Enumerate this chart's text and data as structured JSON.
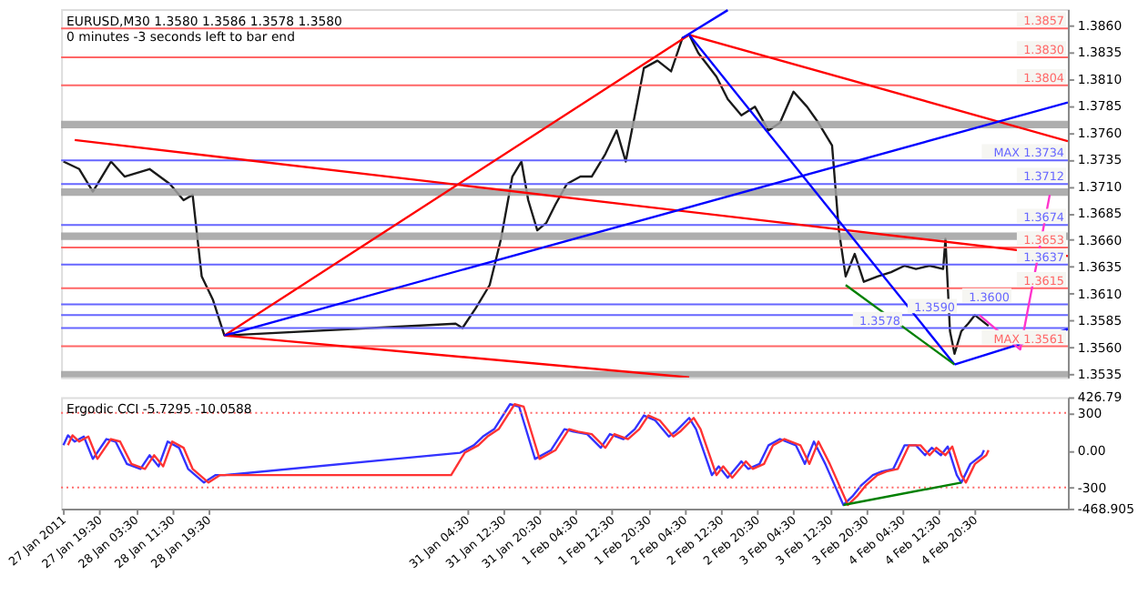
{
  "chart_data": [
    {
      "type": "line",
      "title": "EURUSD,M30  1.3580 1.3586 1.3578 1.3580",
      "subtitle": "0 minutes -3 seconds left to bar end",
      "xlim": [
        "2011-01-27T11:00",
        "2011-02-05T17:00"
      ],
      "ylim": [
        1.3532,
        1.3875
      ],
      "tick_labels": "y",
      "yticks": [
        {
          "value": 1.3535,
          "label": "1.3535"
        },
        {
          "value": 1.356,
          "label": "1.3560"
        },
        {
          "value": 1.3585,
          "label": "1.3585"
        },
        {
          "value": 1.361,
          "label": "1.3610"
        },
        {
          "value": 1.3635,
          "label": "1.3635"
        },
        {
          "value": 1.366,
          "label": "1.3660"
        },
        {
          "value": 1.3685,
          "label": "1.3685"
        },
        {
          "value": 1.371,
          "label": "1.3710"
        },
        {
          "value": 1.3735,
          "label": "1.3735"
        },
        {
          "value": 1.376,
          "label": "1.3760"
        },
        {
          "value": 1.3785,
          "label": "1.3785"
        },
        {
          "value": 1.381,
          "label": "1.3810"
        },
        {
          "value": 1.3835,
          "label": "1.3835"
        },
        {
          "value": 1.386,
          "label": "1.3860"
        }
      ],
      "series": [
        {
          "color": "#1a1a1a",
          "x": [
            "2011-01-27T11:30",
            "2011-01-27T15:00",
            "2011-01-27T18:00",
            "2011-01-27T22:00",
            "2011-01-28T01:00",
            "2011-01-28T06:30",
            "2011-01-28T11:00",
            "2011-01-28T14:00",
            "2011-01-28T16:00",
            "2011-01-28T18:00",
            "2011-01-28T20:30",
            "2011-01-28T23:00",
            "2011-01-31T02:00",
            "2011-01-31T03:30",
            "2011-01-31T06:30",
            "2011-01-31T09:30",
            "2011-01-31T12:00",
            "2011-01-31T14:30",
            "2011-01-31T16:30",
            "2011-01-31T18:00",
            "2011-01-31T20:00",
            "2011-01-31T22:00",
            "2011-02-01T00:00",
            "2011-02-01T02:30",
            "2011-02-01T05:30",
            "2011-02-01T08:00",
            "2011-02-01T11:00",
            "2011-02-01T13:30",
            "2011-02-01T15:30",
            "2011-02-01T17:30",
            "2011-02-01T19:30",
            "2011-02-01T22:30",
            "2011-02-02T01:30",
            "2011-02-02T04:00",
            "2011-02-02T05:30",
            "2011-02-02T07:30",
            "2011-02-02T11:30",
            "2011-02-02T14:00",
            "2011-02-02T17:00",
            "2011-02-02T20:00",
            "2011-02-02T23:00",
            "2011-02-03T01:30",
            "2011-02-03T04:30",
            "2011-02-03T07:30",
            "2011-02-03T10:00",
            "2011-02-03T13:00",
            "2011-02-03T14:30",
            "2011-02-03T16:00",
            "2011-02-03T18:00",
            "2011-02-03T20:00",
            "2011-02-03T23:00",
            "2011-02-04T02:00",
            "2011-02-04T05:00",
            "2011-02-04T07:30",
            "2011-02-04T10:30",
            "2011-02-04T13:30",
            "2011-02-04T14:00",
            "2011-02-04T15:00",
            "2011-02-04T16:00",
            "2011-02-04T17:30",
            "2011-02-04T19:00",
            "2011-02-04T20:30",
            "2011-02-04T23:30"
          ],
          "values": [
            1.3733,
            1.3726,
            1.3705,
            1.3733,
            1.3719,
            1.3726,
            1.3712,
            1.3697,
            1.3702,
            1.3626,
            1.3604,
            1.3571,
            1.3582,
            1.3578,
            1.3597,
            1.3618,
            1.3661,
            1.3719,
            1.3733,
            1.3697,
            1.3669,
            1.3676,
            1.3693,
            1.3712,
            1.3719,
            1.3719,
            1.374,
            1.3762,
            1.3733,
            1.3776,
            1.382,
            1.3827,
            1.3817,
            1.3848,
            1.3851,
            1.3834,
            1.3812,
            1.3791,
            1.3776,
            1.3784,
            1.3762,
            1.3769,
            1.3798,
            1.3784,
            1.3769,
            1.3748,
            1.3669,
            1.3626,
            1.3647,
            1.3621,
            1.3626,
            1.363,
            1.3636,
            1.3633,
            1.3636,
            1.3633,
            1.3661,
            1.3575,
            1.3554,
            1.3575,
            1.3582,
            1.359,
            1.358
          ]
        },
        {
          "type": "line",
          "color": "#ff0000",
          "x": [
            "2011-01-27T14:00",
            "2011-02-05T17:00"
          ],
          "values": [
            1.3753,
            1.3645
          ]
        },
        {
          "type": "line",
          "color": "#ff0000",
          "x": [
            "2011-01-28T23:00",
            "2011-02-02T05:30"
          ],
          "values": [
            1.3571,
            1.3532
          ]
        },
        {
          "type": "line",
          "color": "#ff0000",
          "x": [
            "2011-01-28T23:00",
            "2011-02-02T05:30"
          ],
          "values": [
            1.3571,
            1.3851
          ]
        },
        {
          "type": "line",
          "color": "#ff0000",
          "x": [
            "2011-02-02T05:30",
            "2011-02-05T17:00"
          ],
          "values": [
            1.3851,
            1.3752
          ]
        },
        {
          "type": "line",
          "color": "#0000ff",
          "x": [
            "2011-01-28T23:00",
            "2011-02-05T17:00"
          ],
          "values": [
            1.3571,
            1.3788
          ]
        },
        {
          "type": "line",
          "color": "#0000ff",
          "x": [
            "2011-02-02T04:00",
            "2011-02-02T14:00"
          ],
          "values": [
            1.3848,
            1.3874
          ]
        },
        {
          "type": "line",
          "color": "#0000ff",
          "x": [
            "2011-02-02T05:30",
            "2011-02-04T16:00"
          ],
          "values": [
            1.3851,
            1.3544
          ]
        },
        {
          "type": "line",
          "color": "#008000",
          "x": [
            "2011-02-03T16:00",
            "2011-02-04T16:00"
          ],
          "values": [
            1.3618,
            1.3544
          ]
        },
        {
          "type": "line",
          "color": "#0000ff",
          "x": [
            "2011-02-04T16:00",
            "2011-02-05T17:00"
          ],
          "values": [
            1.3544,
            1.3577
          ]
        },
        {
          "type": "line",
          "color": "#ff33cc",
          "x": [
            "2011-02-04T21:30",
            "2011-02-05T06:30",
            "2011-02-05T13:00"
          ],
          "values": [
            1.359,
            1.3558,
            1.3702
          ]
        }
      ],
      "bands": [
        {
          "axis": "y",
          "from": 1.3764,
          "to": 1.3771,
          "color": "#a0a0a0"
        },
        {
          "axis": "y",
          "from": 1.3701,
          "to": 1.3708,
          "color": "#a0a0a0"
        },
        {
          "axis": "y",
          "from": 1.366,
          "to": 1.3667,
          "color": "#a0a0a0"
        },
        {
          "axis": "y",
          "from": 1.3532,
          "to": 1.3538,
          "color": "#a0a0a0"
        }
      ],
      "ref_lines": [
        {
          "axis": "y",
          "value": 1.3857,
          "label": "1.3857",
          "color": "#ff6666"
        },
        {
          "axis": "y",
          "value": 1.383,
          "label": "1.3830",
          "color": "#ff6666"
        },
        {
          "axis": "y",
          "value": 1.3804,
          "label": "1.3804",
          "color": "#ff6666"
        },
        {
          "axis": "y",
          "value": 1.3653,
          "label": "1.3653",
          "color": "#ff6666"
        },
        {
          "axis": "y",
          "value": 1.3615,
          "label": "1.3615",
          "color": "#ff6666"
        },
        {
          "axis": "y",
          "value": 1.3561,
          "label": "MAX  1.3561",
          "color": "#ff6666"
        },
        {
          "axis": "y",
          "value": 1.3734,
          "label": "MAX  1.3734",
          "color": "#6666ff"
        },
        {
          "axis": "y",
          "value": 1.3712,
          "label": "1.3712",
          "color": "#6666ff"
        },
        {
          "axis": "y",
          "value": 1.3674,
          "label": "1.3674",
          "color": "#6666ff"
        },
        {
          "axis": "y",
          "value": 1.3637,
          "label": "1.3637",
          "color": "#6666ff"
        },
        {
          "axis": "y",
          "value": 1.36,
          "label": "1.3600",
          "color": "#6666ff"
        },
        {
          "axis": "y",
          "value": 1.359,
          "label": "1.3590",
          "color": "#6666ff"
        },
        {
          "axis": "y",
          "value": 1.3578,
          "label": "1.3578",
          "color": "#6666ff"
        }
      ]
    },
    {
      "type": "line",
      "title": "Ergodic CCI -5.7295 -10.0588",
      "xlim": [
        "2011-01-27T11:00",
        "2011-02-05T17:00"
      ],
      "ylim": [
        -468.905,
        426.79
      ],
      "yticks": [
        -468.905,
        -300,
        {
          "value": 0,
          "label": "0.00"
        },
        300,
        426.79
      ],
      "xticks": [
        {
          "value": "2011-01-27T11:30",
          "label": "27 Jan 2011"
        },
        {
          "value": "2011-01-27T19:30",
          "label": "27 Jan 19:30"
        },
        {
          "value": "2011-01-28T03:30",
          "label": "28 Jan 03:30"
        },
        {
          "value": "2011-01-28T11:30",
          "label": "28 Jan 11:30"
        },
        {
          "value": "2011-01-28T19:30",
          "label": "28 Jan 19:30"
        },
        {
          "value": "2011-01-31T04:30",
          "label": "31 Jan 04:30"
        },
        {
          "value": "2011-01-31T12:30",
          "label": "31 Jan 12:30"
        },
        {
          "value": "2011-01-31T20:30",
          "label": "31 Jan 20:30"
        },
        {
          "value": "2011-02-01T04:30",
          "label": "1 Feb 04:30"
        },
        {
          "value": "2011-02-01T12:30",
          "label": "1 Feb 12:30"
        },
        {
          "value": "2011-02-01T20:30",
          "label": "1 Feb 20:30"
        },
        {
          "value": "2011-02-02T04:30",
          "label": "2 Feb 04:30"
        },
        {
          "value": "2011-02-02T12:30",
          "label": "2 Feb 12:30"
        },
        {
          "value": "2011-02-02T20:30",
          "label": "2 Feb 20:30"
        },
        {
          "value": "2011-02-03T04:30",
          "label": "3 Feb 04:30"
        },
        {
          "value": "2011-02-03T12:30",
          "label": "3 Feb 12:30"
        },
        {
          "value": "2011-02-03T20:30",
          "label": "3 Feb 20:30"
        },
        {
          "value": "2011-02-04T04:30",
          "label": "4 Feb 04:30"
        },
        {
          "value": "2011-02-04T12:30",
          "label": "4 Feb 12:30"
        },
        {
          "value": "2011-02-04T20:30",
          "label": "4 Feb 20:30"
        }
      ],
      "series": [
        {
          "color": "#3333ff",
          "x": [
            "2011-01-27T11:30",
            "2011-01-27T12:30",
            "2011-01-27T14:00",
            "2011-01-27T16:00",
            "2011-01-27T18:00",
            "2011-01-27T21:00",
            "2011-01-27T23:00",
            "2011-01-28T01:30",
            "2011-01-28T04:30",
            "2011-01-28T06:30",
            "2011-01-28T08:30",
            "2011-01-28T10:30",
            "2011-01-28T13:00",
            "2011-01-28T15:00",
            "2011-01-28T18:30",
            "2011-01-28T21:00",
            "2011-01-28T23:00",
            "2011-01-31T03:00",
            "2011-01-31T06:00",
            "2011-01-31T08:00",
            "2011-01-31T10:30",
            "2011-01-31T14:00",
            "2011-01-31T16:00",
            "2011-01-31T19:30",
            "2011-01-31T23:00",
            "2011-02-01T02:00",
            "2011-02-01T04:00",
            "2011-02-01T07:00",
            "2011-02-01T10:00",
            "2011-02-01T12:00",
            "2011-02-01T15:00",
            "2011-02-01T17:30",
            "2011-02-01T19:30",
            "2011-02-01T22:00",
            "2011-02-02T01:00",
            "2011-02-02T02:30",
            "2011-02-02T05:30",
            "2011-02-02T07:00",
            "2011-02-02T10:30",
            "2011-02-02T12:00",
            "2011-02-02T14:00",
            "2011-02-02T17:00",
            "2011-02-02T18:30",
            "2011-02-02T21:00",
            "2011-02-02T23:00",
            "2011-02-03T01:30",
            "2011-02-03T05:00",
            "2011-02-03T07:00",
            "2011-02-03T09:00",
            "2011-02-03T11:30",
            "2011-02-03T15:30",
            "2011-02-03T17:30",
            "2011-02-03T19:30",
            "2011-02-03T22:00",
            "2011-02-04T00:00",
            "2011-02-04T02:30",
            "2011-02-04T05:00",
            "2011-02-04T07:30",
            "2011-02-04T09:30",
            "2011-02-04T11:00",
            "2011-02-04T13:00",
            "2011-02-04T14:30",
            "2011-02-04T16:30",
            "2011-02-04T17:30",
            "2011-02-04T19:30",
            "2011-02-04T22:00",
            "2011-02-04T22:30"
          ],
          "values": [
            40,
            120,
            70,
            110,
            -70,
            90,
            70,
            -110,
            -150,
            -40,
            -130,
            70,
            20,
            -150,
            -260,
            -200,
            -200,
            -20,
            40,
            110,
            170,
            370,
            350,
            -70,
            0,
            170,
            150,
            130,
            20,
            130,
            90,
            170,
            280,
            240,
            110,
            150,
            260,
            170,
            -200,
            -130,
            -220,
            -90,
            -150,
            -110,
            40,
            90,
            40,
            -110,
            70,
            -110,
            -440,
            -370,
            -280,
            -200,
            -170,
            -150,
            40,
            40,
            -40,
            20,
            -40,
            30,
            -200,
            -260,
            -110,
            -40,
            0
          ]
        },
        {
          "color": "#ff3333",
          "x": [
            "2011-01-27T12:30",
            "2011-01-27T13:30",
            "2011-01-27T15:00",
            "2011-01-27T17:00",
            "2011-01-27T19:00",
            "2011-01-27T22:00",
            "2011-01-28T00:00",
            "2011-01-28T02:30",
            "2011-01-28T05:30",
            "2011-01-28T07:30",
            "2011-01-28T09:30",
            "2011-01-28T11:30",
            "2011-01-28T14:00",
            "2011-01-28T16:00",
            "2011-01-28T19:30",
            "2011-01-28T22:00",
            "2011-01-31T01:00",
            "2011-01-31T04:00",
            "2011-01-31T07:00",
            "2011-01-31T09:00",
            "2011-01-31T11:30",
            "2011-01-31T15:00",
            "2011-01-31T17:00",
            "2011-01-31T20:30",
            "2011-02-01T00:00",
            "2011-02-01T03:00",
            "2011-02-01T05:00",
            "2011-02-01T08:00",
            "2011-02-01T11:00",
            "2011-02-01T13:00",
            "2011-02-01T16:00",
            "2011-02-01T18:30",
            "2011-02-01T20:30",
            "2011-02-01T23:00",
            "2011-02-02T02:00",
            "2011-02-02T03:30",
            "2011-02-02T06:30",
            "2011-02-02T08:00",
            "2011-02-02T11:30",
            "2011-02-02T13:00",
            "2011-02-02T15:00",
            "2011-02-02T18:00",
            "2011-02-02T19:30",
            "2011-02-02T22:00",
            "2011-02-03T00:00",
            "2011-02-03T02:30",
            "2011-02-03T06:00",
            "2011-02-03T08:00",
            "2011-02-03T10:00",
            "2011-02-03T12:30",
            "2011-02-03T16:30",
            "2011-02-03T18:30",
            "2011-02-03T20:30",
            "2011-02-03T23:00",
            "2011-02-04T01:00",
            "2011-02-04T03:30",
            "2011-02-04T06:00",
            "2011-02-04T08:30",
            "2011-02-04T10:30",
            "2011-02-04T12:00",
            "2011-02-04T14:00",
            "2011-02-04T15:30",
            "2011-02-04T17:30",
            "2011-02-04T18:30",
            "2011-02-04T20:30",
            "2011-02-04T23:00",
            "2011-02-04T23:30"
          ],
          "values": [
            40,
            120,
            70,
            110,
            -70,
            90,
            70,
            -110,
            -150,
            -40,
            -130,
            70,
            20,
            -150,
            -260,
            -200,
            -200,
            -20,
            40,
            110,
            170,
            370,
            350,
            -70,
            0,
            170,
            150,
            130,
            20,
            130,
            90,
            170,
            280,
            240,
            110,
            150,
            260,
            170,
            -200,
            -130,
            -220,
            -90,
            -150,
            -110,
            40,
            90,
            40,
            -110,
            70,
            -110,
            -440,
            -370,
            -280,
            -200,
            -170,
            -150,
            40,
            40,
            -40,
            20,
            -40,
            30,
            -200,
            -260,
            -110,
            -40,
            0
          ]
        },
        {
          "color": "#008000",
          "x": [
            "2011-02-03T15:30",
            "2011-02-04T17:30"
          ],
          "values": [
            -440,
            -260
          ]
        }
      ],
      "ref_lines": [
        {
          "axis": "y",
          "value": 300,
          "label": null,
          "color": "#ff6666",
          "line_style": "dotted"
        },
        {
          "axis": "y",
          "value": -300,
          "label": null,
          "color": "#ff6666",
          "line_style": "dotted"
        }
      ]
    }
  ]
}
